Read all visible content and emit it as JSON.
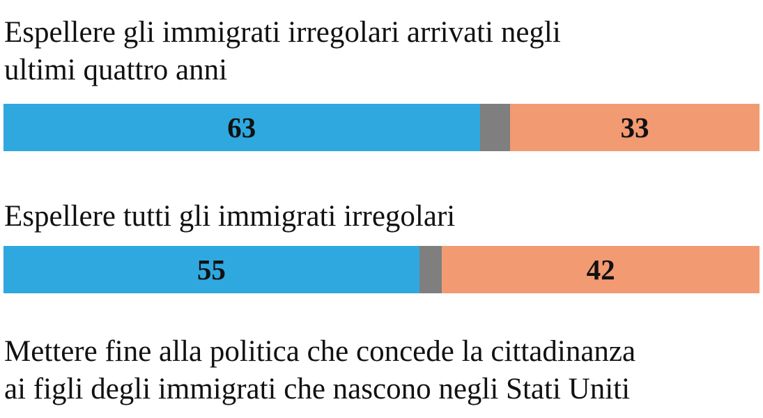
{
  "chart_data": {
    "type": "bar",
    "orientation": "horizontal-stacked",
    "colors": {
      "favor": "#2fa8e0",
      "undecided": "#7f7f7f",
      "oppose": "#f29a72"
    },
    "items": [
      {
        "lines": [
          "Espellere gli immigrati irregolari arrivati negli",
          "ultimi quattro anni"
        ],
        "values": [
          63,
          4,
          33
        ],
        "labels": [
          "63",
          "",
          "33"
        ]
      },
      {
        "lines": [
          "Espellere tutti gli immigrati irregolari"
        ],
        "values": [
          55,
          3,
          42
        ],
        "labels": [
          "55",
          "",
          "42"
        ]
      },
      {
        "lines": [
          "Mettere fine alla politica che concede la cittadinanza",
          "ai figli degli immigrati che nascono negli Stati Uniti"
        ],
        "values": null,
        "labels": null
      }
    ]
  }
}
